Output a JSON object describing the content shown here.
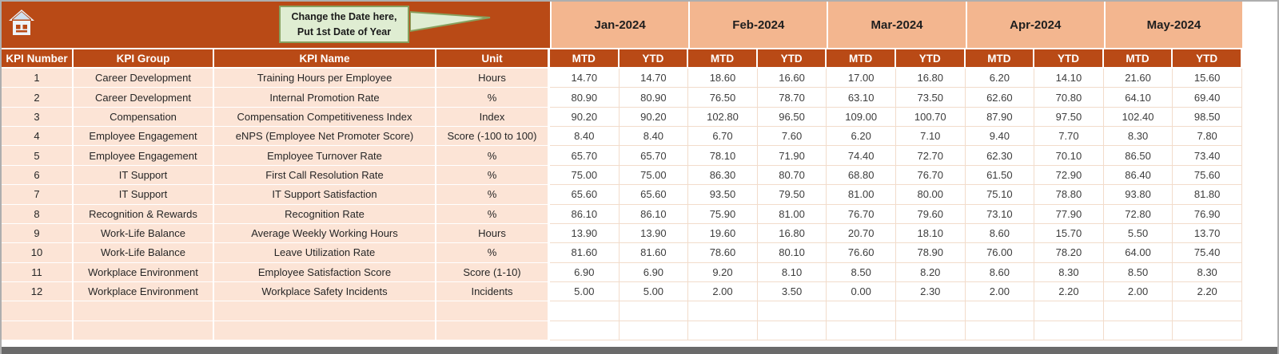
{
  "banner": {
    "callout": {
      "line1": "Change the Date here,",
      "line2": "Put 1st Date of Year"
    }
  },
  "table": {
    "left_headers": [
      "KPI Number",
      "KPI Group",
      "KPI Name",
      "Unit"
    ],
    "months": [
      "Jan-2024",
      "Feb-2024",
      "Mar-2024",
      "Apr-2024",
      "May-2024"
    ],
    "sub_headers": [
      "MTD",
      "YTD"
    ],
    "empty_rows": 2,
    "rows": [
      {
        "number": "1",
        "group": "Career Development",
        "name": "Training Hours per Employee",
        "unit": "Hours",
        "values": [
          "14.70",
          "14.70",
          "18.60",
          "16.60",
          "17.00",
          "16.80",
          "6.20",
          "14.10",
          "21.60",
          "15.60"
        ]
      },
      {
        "number": "2",
        "group": "Career Development",
        "name": "Internal Promotion Rate",
        "unit": "%",
        "values": [
          "80.90",
          "80.90",
          "76.50",
          "78.70",
          "63.10",
          "73.50",
          "62.60",
          "70.80",
          "64.10",
          "69.40"
        ]
      },
      {
        "number": "3",
        "group": "Compensation",
        "name": "Compensation Competitiveness Index",
        "unit": "Index",
        "values": [
          "90.20",
          "90.20",
          "102.80",
          "96.50",
          "109.00",
          "100.70",
          "87.90",
          "97.50",
          "102.40",
          "98.50"
        ]
      },
      {
        "number": "4",
        "group": "Employee Engagement",
        "name": "eNPS (Employee Net Promoter Score)",
        "unit": "Score (-100 to 100)",
        "values": [
          "8.40",
          "8.40",
          "6.70",
          "7.60",
          "6.20",
          "7.10",
          "9.40",
          "7.70",
          "8.30",
          "7.80"
        ]
      },
      {
        "number": "5",
        "group": "Employee Engagement",
        "name": "Employee Turnover Rate",
        "unit": "%",
        "values": [
          "65.70",
          "65.70",
          "78.10",
          "71.90",
          "74.40",
          "72.70",
          "62.30",
          "70.10",
          "86.50",
          "73.40"
        ]
      },
      {
        "number": "6",
        "group": "IT Support",
        "name": "First Call Resolution Rate",
        "unit": "%",
        "values": [
          "75.00",
          "75.00",
          "86.30",
          "80.70",
          "68.80",
          "76.70",
          "61.50",
          "72.90",
          "86.40",
          "75.60"
        ]
      },
      {
        "number": "7",
        "group": "IT Support",
        "name": "IT Support Satisfaction",
        "unit": "%",
        "values": [
          "65.60",
          "65.60",
          "93.50",
          "79.50",
          "81.00",
          "80.00",
          "75.10",
          "78.80",
          "93.80",
          "81.80"
        ]
      },
      {
        "number": "8",
        "group": "Recognition & Rewards",
        "name": "Recognition Rate",
        "unit": "%",
        "values": [
          "86.10",
          "86.10",
          "75.90",
          "81.00",
          "76.70",
          "79.60",
          "73.10",
          "77.90",
          "72.80",
          "76.90"
        ]
      },
      {
        "number": "9",
        "group": "Work-Life Balance",
        "name": "Average Weekly Working Hours",
        "unit": "Hours",
        "values": [
          "13.90",
          "13.90",
          "19.60",
          "16.80",
          "20.70",
          "18.10",
          "8.60",
          "15.70",
          "5.50",
          "13.70"
        ]
      },
      {
        "number": "10",
        "group": "Work-Life Balance",
        "name": "Leave Utilization Rate",
        "unit": "%",
        "values": [
          "81.60",
          "81.60",
          "78.60",
          "80.10",
          "76.60",
          "78.90",
          "76.00",
          "78.20",
          "64.00",
          "75.40"
        ]
      },
      {
        "number": "11",
        "group": "Workplace Environment",
        "name": "Employee Satisfaction Score",
        "unit": "Score (1-10)",
        "values": [
          "6.90",
          "6.90",
          "9.20",
          "8.10",
          "8.50",
          "8.20",
          "8.60",
          "8.30",
          "8.50",
          "8.30"
        ]
      },
      {
        "number": "12",
        "group": "Workplace Environment",
        "name": "Workplace Safety Incidents",
        "unit": "Incidents",
        "values": [
          "5.00",
          "5.00",
          "2.00",
          "3.50",
          "0.00",
          "2.30",
          "2.00",
          "2.20",
          "2.00",
          "2.20"
        ]
      }
    ]
  },
  "colors": {
    "rust": "#B94A16",
    "salmon": "#F3B68F",
    "peach": "#FCE4D6",
    "callout_bg": "#DFEDD2",
    "callout_border": "#87A05E",
    "bottom_bar": "#6A6A6A"
  }
}
